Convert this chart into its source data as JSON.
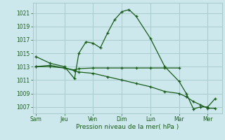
{
  "xlabel": "Pression niveau de la mer( hPa )",
  "xtick_labels": [
    "Sam",
    "Jeu",
    "Ven",
    "Dim",
    "Lun",
    "Mar",
    "Mer"
  ],
  "xtick_positions": [
    0,
    2,
    4,
    6,
    8,
    10,
    12
  ],
  "ylim": [
    1006.0,
    1022.5
  ],
  "yticks": [
    1007,
    1009,
    1011,
    1013,
    1015,
    1017,
    1019,
    1021
  ],
  "bg_color": "#cce8ec",
  "grid_color": "#aacccc",
  "line_color": "#1a5c1a",
  "series1_x": [
    0,
    1,
    2,
    2.7,
    3.0,
    3.5,
    4.0,
    4.5,
    5.0,
    5.5,
    6.0,
    6.5,
    7.0,
    8.0,
    9.0,
    10.0,
    10.5,
    11.0,
    11.5,
    12.0,
    12.5
  ],
  "series1_y": [
    1014.5,
    1013.5,
    1013.0,
    1011.2,
    1015.0,
    1016.7,
    1016.5,
    1015.8,
    1018.0,
    1020.0,
    1021.2,
    1021.5,
    1020.5,
    1017.2,
    1013.0,
    1010.8,
    1009.0,
    1006.7,
    1007.0,
    1007.0,
    1008.2
  ],
  "series2_x": [
    0,
    1,
    2,
    2.7,
    3.0,
    4.0,
    5.0,
    6.0,
    7.0,
    8.0,
    9.0,
    10.0
  ],
  "series2_y": [
    1013.0,
    1013.2,
    1012.8,
    1012.5,
    1012.7,
    1012.8,
    1012.8,
    1012.8,
    1012.8,
    1012.8,
    1012.8,
    1012.8
  ],
  "series3_x": [
    0,
    1,
    2,
    2.7,
    3.0,
    4.0,
    5.0,
    6.0,
    7.0,
    8.0,
    9.0,
    10.0,
    10.5,
    11.0,
    11.5,
    12.0,
    12.5
  ],
  "series3_y": [
    1013.0,
    1013.0,
    1012.8,
    1012.4,
    1012.2,
    1012.0,
    1011.5,
    1011.0,
    1010.5,
    1010.0,
    1009.3,
    1009.0,
    1008.5,
    1007.8,
    1007.3,
    1006.8,
    1006.8
  ]
}
